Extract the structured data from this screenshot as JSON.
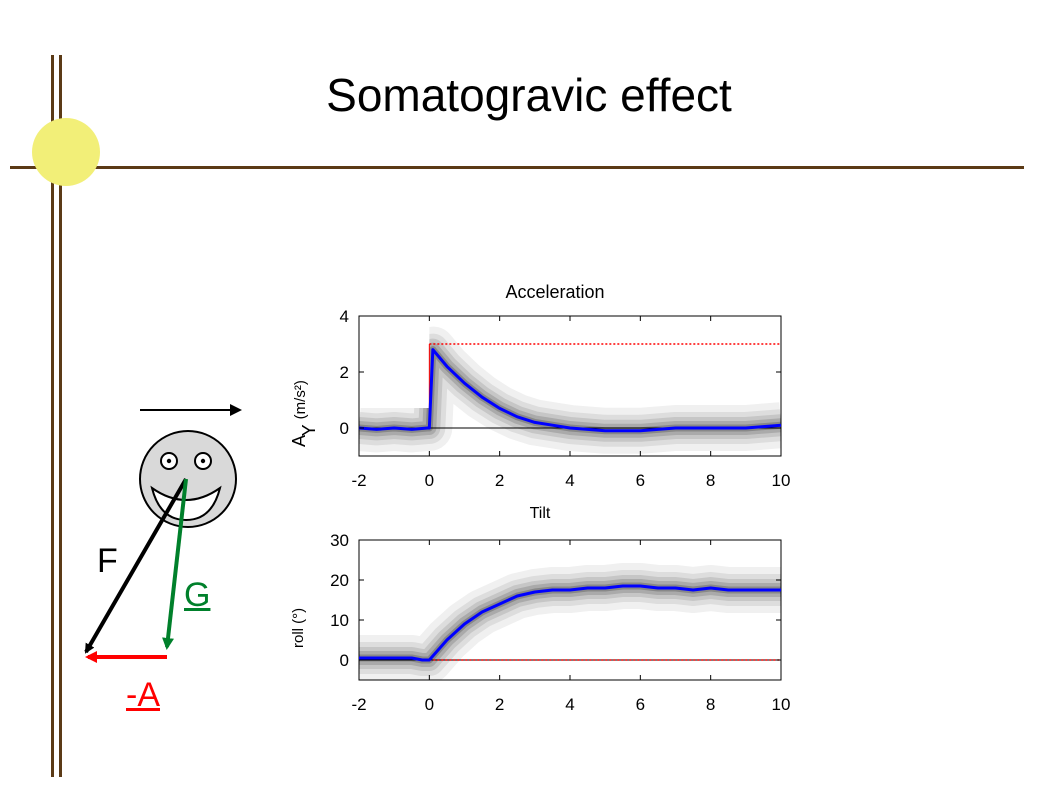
{
  "slide": {
    "title": "Somatogravic effect",
    "colors": {
      "frame": "#5b3a16",
      "circle": "#f2ef78",
      "head": "#d9d9d9"
    }
  },
  "diagram": {
    "labels": {
      "F": "F",
      "G": "G",
      "A": "-A"
    },
    "colors": {
      "F": "#000000",
      "G": "#00802b",
      "A": "#ff0000"
    }
  },
  "chart_data": [
    {
      "type": "line",
      "title": "Acceleration",
      "ylabel_main": "A",
      "ylabel_sub": "Y",
      "ylabel_unit": "(m/s²)",
      "xlim": [
        -2,
        10
      ],
      "ylim": [
        -1,
        4
      ],
      "xticks": [
        "-2",
        "0",
        "2",
        "4",
        "6",
        "8",
        "10"
      ],
      "yticks": [
        "0",
        "2",
        "4"
      ],
      "reference": {
        "x": [
          0,
          10
        ],
        "y": 3,
        "color": "#ff0000",
        "style": "dotted"
      },
      "series": [
        {
          "color": "#0000ff",
          "x": [
            -2,
            -1.5,
            -1,
            -0.5,
            -0.05,
            0,
            0.1,
            0.3,
            0.5,
            1,
            1.5,
            2,
            2.5,
            3,
            3.5,
            4,
            5,
            6,
            7,
            8,
            9,
            9.5,
            10
          ],
          "y": [
            0,
            -0.05,
            0,
            -0.05,
            0,
            0,
            2.8,
            2.5,
            2.2,
            1.6,
            1.1,
            0.7,
            0.4,
            0.2,
            0.1,
            0,
            -0.1,
            -0.1,
            0,
            0,
            0,
            0.05,
            0.1
          ]
        }
      ],
      "background": "grey probability-density band (heatmap) around the mean trace"
    },
    {
      "type": "line",
      "title": "Tilt",
      "ylabel": "roll (°)",
      "xlim": [
        -2,
        10
      ],
      "ylim": [
        -5,
        30
      ],
      "xticks": [
        "-2",
        "0",
        "2",
        "4",
        "6",
        "8",
        "10"
      ],
      "yticks": [
        "0",
        "10",
        "20",
        "30"
      ],
      "reference": {
        "x": [
          0,
          10
        ],
        "y": 0,
        "color": "#ff0000",
        "style": "dotted"
      },
      "series": [
        {
          "color": "#0000ff",
          "x": [
            -2,
            -1.5,
            -1,
            -0.5,
            -0.2,
            0,
            0.5,
            1,
            1.5,
            2,
            2.5,
            3,
            3.5,
            4,
            4.5,
            5,
            5.5,
            6,
            6.5,
            7,
            7.5,
            8,
            8.5,
            9,
            9.5,
            10
          ],
          "y": [
            0.5,
            0.5,
            0.5,
            0.5,
            0,
            0,
            5,
            9,
            12,
            14,
            16,
            17,
            17.5,
            17.5,
            18,
            18,
            18.5,
            18.5,
            18,
            18,
            17.5,
            18,
            17.5,
            17.5,
            17.5,
            17.5
          ]
        }
      ],
      "background": "grey probability-density band (heatmap) around the mean trace"
    }
  ]
}
